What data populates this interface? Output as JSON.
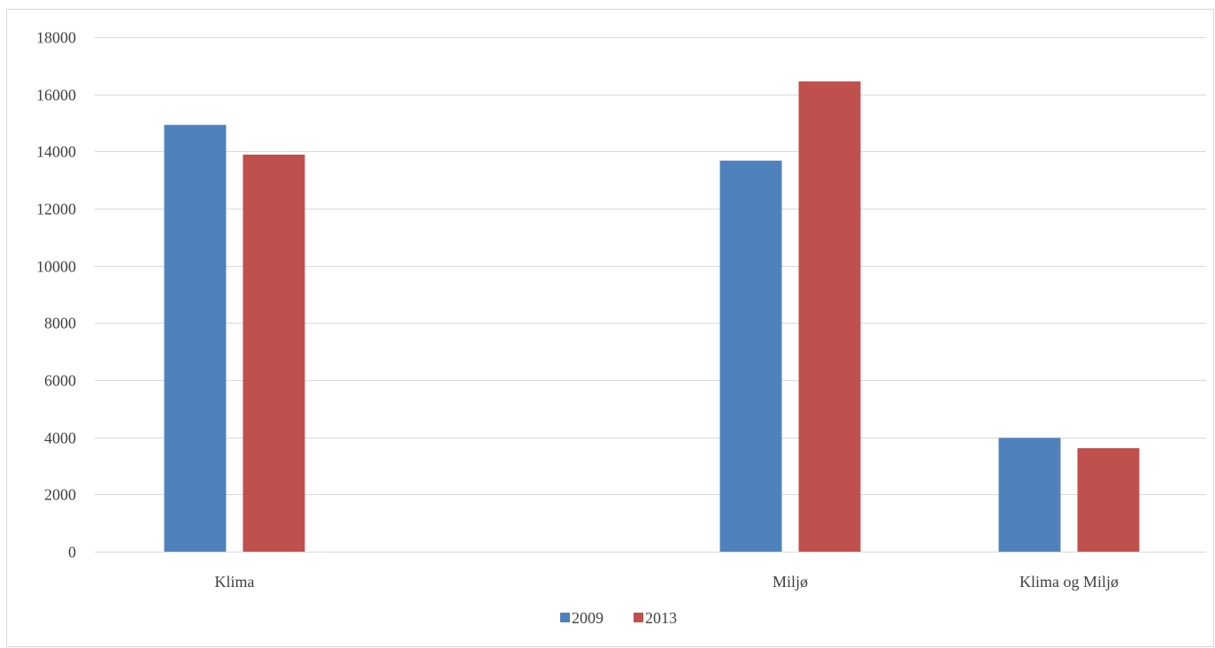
{
  "chart_data": {
    "type": "bar",
    "title": "",
    "xlabel": "",
    "ylabel": "",
    "categories": [
      "Klima",
      "Miljø",
      "Klima og Miljø"
    ],
    "series": [
      {
        "name": "2009",
        "color": "#4f81bd",
        "values": [
          14930,
          13680,
          3980
        ]
      },
      {
        "name": "2013",
        "color": "#c0504d",
        "values": [
          13890,
          16450,
          3620
        ]
      }
    ],
    "ylim": [
      0,
      18000
    ],
    "yticks": [
      0,
      2000,
      4000,
      6000,
      8000,
      10000,
      12000,
      14000,
      16000,
      18000
    ],
    "grid": true,
    "legend_position": "bottom"
  }
}
